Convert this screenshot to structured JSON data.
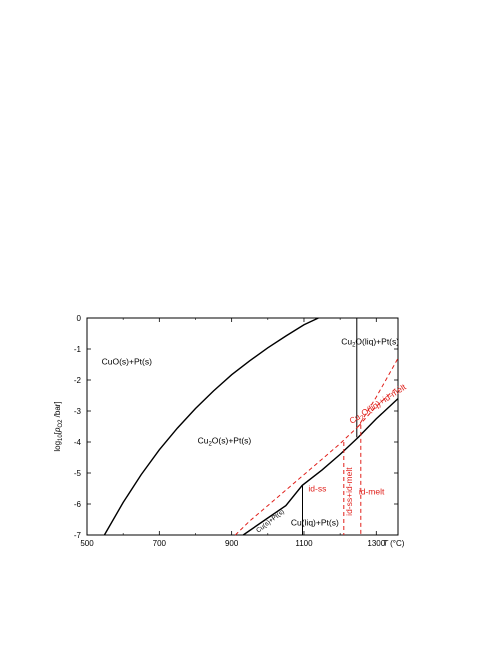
{
  "chart_data": {
    "type": "line",
    "title": "",
    "xlabel_italic": "T",
    "xlabel_rest": " (°C)",
    "ylabel_main": "log",
    "ylabel_sub": "10",
    "ylabel_bracket_open": "[",
    "ylabel_p": "p",
    "ylabel_psub": "O2",
    "ylabel_rest": " /bar]",
    "xlim": [
      500,
      1360
    ],
    "ylim": [
      -7,
      0
    ],
    "xticks": [
      "500",
      "700",
      "900",
      "1100",
      "1300"
    ],
    "xtick_values": [
      500,
      700,
      900,
      1100,
      1300
    ],
    "yticks": [
      "0",
      "-1",
      "-2",
      "-3",
      "-4",
      "-5",
      "-6",
      "-7"
    ],
    "ytick_values": [
      0,
      -1,
      -2,
      -3,
      -4,
      -5,
      -6,
      -7
    ],
    "series": [
      {
        "style": "solid-black-thick",
        "x": [
          548,
          600,
          650,
          700,
          750,
          800,
          850,
          900,
          950,
          1000,
          1050,
          1100,
          1140
        ],
        "y": [
          -7,
          -5.95,
          -5.05,
          -4.25,
          -3.55,
          -2.92,
          -2.35,
          -1.83,
          -1.38,
          -0.96,
          -0.58,
          -0.22,
          0
        ]
      },
      {
        "style": "solid-black-thick",
        "x": [
          932,
          1000,
          1050,
          1095,
          1150,
          1200,
          1250,
          1300,
          1360
        ],
        "y": [
          -7,
          -6.45,
          -6.05,
          -5.4,
          -4.9,
          -4.4,
          -3.85,
          -3.25,
          -2.6
        ]
      },
      {
        "style": "solid-black-thin",
        "x": [
          1096,
          1096
        ],
        "y": [
          -5.4,
          -7
        ]
      },
      {
        "style": "solid-black-thin",
        "x": [
          1246,
          1246
        ],
        "y": [
          0,
          -3.85
        ]
      },
      {
        "style": "dashed-red",
        "x": [
          910,
          950,
          1000,
          1050,
          1100,
          1150,
          1200,
          1250,
          1300,
          1360
        ],
        "y": [
          -7,
          -6.55,
          -6.05,
          -5.55,
          -5.05,
          -4.55,
          -4.05,
          -3.5,
          -2.55,
          -1.3
        ]
      },
      {
        "style": "dashed-red",
        "x": [
          1250,
          1300,
          1360
        ],
        "y": [
          -3.5,
          -2.85,
          -2.2
        ]
      },
      {
        "style": "dashed-red",
        "x": [
          1210,
          1210
        ],
        "y": [
          -4.0,
          -7
        ]
      },
      {
        "style": "dashed-red",
        "x": [
          1257,
          1257
        ],
        "y": [
          -3.45,
          -7
        ]
      }
    ],
    "labels": [
      {
        "text": "CuO(s)+Pt(s)",
        "x": 610,
        "y": -1.5,
        "color": "black"
      },
      {
        "parts": [
          "Cu",
          "2",
          "O(s)+Pt(s)"
        ],
        "x": 880,
        "y": -4.05,
        "color": "black"
      },
      {
        "parts": [
          "Cu",
          "2",
          "O(liq)+Pt(s)"
        ],
        "x": 1283,
        "y": -0.85,
        "color": "black"
      },
      {
        "text": "Cu(liq)+Pt(s)",
        "x": 1130,
        "y": -6.7,
        "color": "black"
      },
      {
        "text": "Cu(s)+Pt(s)",
        "x": 1010,
        "y": -6.6,
        "color": "black",
        "rotate": -38
      },
      {
        "text": "id-ss",
        "x": 1137,
        "y": -5.6,
        "color": "red"
      },
      {
        "text": "id-ss+id-melt",
        "x": 1233,
        "y": -5.6,
        "color": "red",
        "rotate": -90
      },
      {
        "text": "id-melt",
        "x": 1287,
        "y": -5.7,
        "color": "red"
      },
      {
        "parts": [
          "Cu",
          "2",
          "O(liq)+id-melt"
        ],
        "x": 1308,
        "y": -2.85,
        "color": "red",
        "rotate": -33
      }
    ]
  }
}
